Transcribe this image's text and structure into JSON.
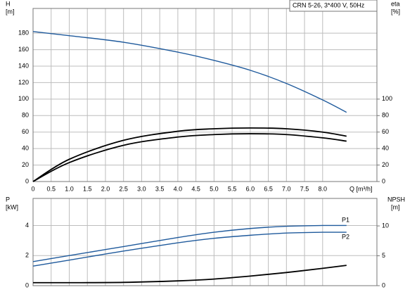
{
  "chart_data": [
    {
      "type": "line",
      "legend_title": "CRN 5-26, 3*400 V, 50Hz",
      "y_label": [
        "H",
        "[m]"
      ],
      "y2_label": [
        "eta",
        "[%]"
      ],
      "x_label": "Q [m³/h]",
      "x": [
        0,
        1,
        2.5,
        4,
        5,
        6,
        7,
        8,
        8.66
      ],
      "xlim": [
        0,
        9.5
      ],
      "xticks": [
        0,
        0.5,
        {
          "value": 1,
          "label": "1.0"
        },
        1.5,
        {
          "value": 2,
          "label": "2.0"
        },
        2.5,
        {
          "value": 3,
          "label": "3.0"
        },
        3.5,
        {
          "value": 4,
          "label": "4.0"
        },
        4.5,
        {
          "value": 5,
          "label": "5.0"
        },
        5.5,
        {
          "value": 6,
          "label": "6.0"
        },
        6.5,
        {
          "value": 7,
          "label": "7.0"
        },
        7.5,
        {
          "value": 8,
          "label": "8.0"
        }
      ],
      "ylim": [
        0,
        210
      ],
      "yticks": [
        0,
        20,
        40,
        60,
        80,
        100,
        120,
        140,
        160,
        180
      ],
      "y2lim": [
        0,
        210
      ],
      "y2ticks": [
        0,
        20,
        40,
        60,
        80,
        100
      ],
      "grid": true,
      "series": [
        {
          "color": "#1f5a9c",
          "values": [
            182,
            177,
            169,
            157,
            147,
            135,
            119,
            99,
            84
          ]
        },
        {
          "color": "#000000",
          "axis": "y2",
          "values": [
            0,
            27,
            50,
            61,
            64,
            65,
            64,
            60,
            55
          ]
        },
        {
          "color": "#000000",
          "axis": "y2",
          "values": [
            0,
            23,
            44,
            54,
            57,
            58,
            57,
            53,
            49
          ]
        }
      ]
    },
    {
      "type": "line",
      "y_label": [
        "P",
        "[kW]"
      ],
      "y2_label": [
        "NPSH",
        "[m]"
      ],
      "x": [
        0,
        1,
        2.5,
        4,
        5,
        6,
        7,
        8,
        8.66
      ],
      "xlim": [
        0,
        9.5
      ],
      "ylim": [
        0,
        5.8
      ],
      "yticks": [
        0,
        2,
        4
      ],
      "y2lim": [
        0,
        14.6
      ],
      "y2ticks": [
        0,
        5,
        10
      ],
      "grid": true,
      "series": [
        {
          "name": "P1",
          "color": "#1f5a9c",
          "values": [
            1.6,
            2.0,
            2.6,
            3.2,
            3.55,
            3.8,
            3.95,
            4.0,
            4.0
          ]
        },
        {
          "name": "P2",
          "color": "#1f5a9c",
          "values": [
            1.3,
            1.7,
            2.3,
            2.85,
            3.15,
            3.35,
            3.5,
            3.55,
            3.55
          ]
        },
        {
          "color": "#000000",
          "axis": "y2",
          "values": [
            0.5,
            0.5,
            0.55,
            0.8,
            1.1,
            1.6,
            2.2,
            2.9,
            3.4
          ]
        }
      ]
    }
  ]
}
